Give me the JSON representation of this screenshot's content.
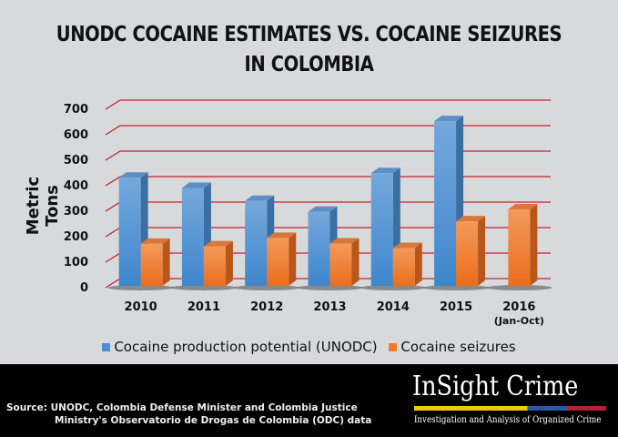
{
  "chart_data": {
    "type": "bar",
    "title": "UNODC COCAINE ESTIMATES VS. COCAINE SEIZURES IN COLOMBIA",
    "title_lines": [
      "UNODC COCAINE ESTIMATES VS. COCAINE SEIZURES",
      "IN COLOMBIA"
    ],
    "xlabel": "",
    "ylabel": "Metric Tons",
    "ylim": [
      0,
      700
    ],
    "yticks": [
      "0",
      "100",
      "200",
      "300",
      "400",
      "500",
      "600",
      "700"
    ],
    "categories": [
      "2010",
      "2011",
      "2012",
      "2013",
      "2014",
      "2015",
      "2016"
    ],
    "category_sublabels": [
      "",
      "",
      "",
      "",
      "",
      "",
      "(Jan-Oct)"
    ],
    "series": [
      {
        "name": "Cocaine production potential (UNODC)",
        "color": "#4a8fd4",
        "values": [
          424,
          384,
          333,
          290,
          442,
          646,
          null
        ]
      },
      {
        "name": "Cocaine seizures",
        "color": "#ef7a2a",
        "values": [
          165,
          155,
          188,
          166,
          148,
          253,
          300
        ]
      }
    ],
    "grid": true,
    "legend": "bottom"
  },
  "footer": {
    "source_lines": [
      "Source: UNODC, Colombia Defense Minister and Colombia Justice",
      "Ministry's Observatorio de Drogas de Colombia (ODC) data"
    ],
    "brand": "InSight Crime",
    "tagline": "Investigation and Analysis of Organized Crime"
  }
}
